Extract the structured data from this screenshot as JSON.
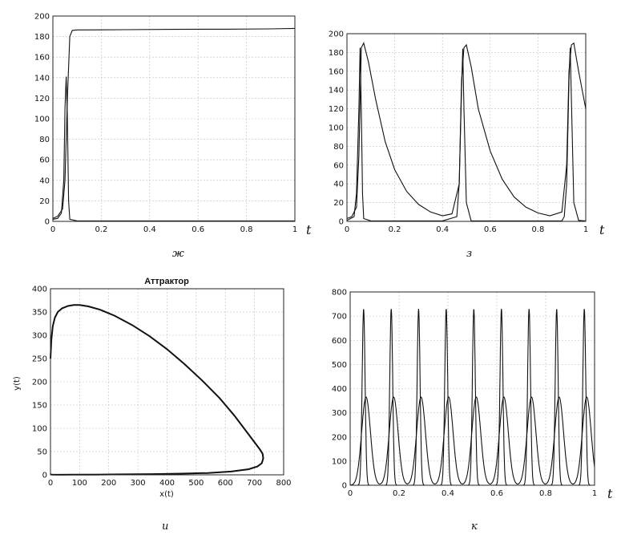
{
  "chart_data": [
    {
      "id": "zh",
      "type": "line",
      "caption": "ж",
      "x_var": "t",
      "xlim": [
        0,
        1
      ],
      "ylim": [
        0,
        200
      ],
      "xticks": [
        0,
        0.2,
        0.4,
        0.6,
        0.8,
        1
      ],
      "xtick_labels": [
        "0",
        "0.2",
        "0.4",
        "0.6",
        "0.8",
        "1"
      ],
      "yticks": [
        0,
        20,
        40,
        60,
        80,
        100,
        120,
        140,
        160,
        180,
        200
      ],
      "yticks_labels": [
        "0",
        "20",
        "40",
        "60",
        "80",
        "100",
        "120",
        "140",
        "160",
        "180",
        "200"
      ],
      "grid": true,
      "series": [
        {
          "x": [
            0,
            0.02,
            0.04,
            0.05,
            0.06,
            0.07,
            0.08,
            0.1,
            0.3,
            0.5,
            0.7,
            0.9,
            1.0
          ],
          "y": [
            3,
            5,
            12,
            40,
            120,
            180,
            186,
            186.5,
            186.7,
            187,
            187.2,
            187.5,
            188
          ]
        },
        {
          "x": [
            0,
            0.02,
            0.035,
            0.045,
            0.05,
            0.055,
            0.06,
            0.065,
            0.07,
            0.1,
            0.5,
            1.0
          ],
          "y": [
            2,
            3,
            8,
            40,
            110,
            141,
            100,
            20,
            2,
            0.5,
            0.5,
            0.5
          ]
        }
      ]
    },
    {
      "id": "z",
      "type": "line",
      "caption": "з",
      "x_var": "t",
      "xlim": [
        0,
        1
      ],
      "ylim": [
        0,
        200
      ],
      "xticks": [
        0,
        0.2,
        0.4,
        0.6,
        0.8,
        1
      ],
      "xtick_labels": [
        "0",
        "0.2",
        "0.4",
        "0.6",
        "0.8",
        "1"
      ],
      "yticks": [
        0,
        20,
        40,
        60,
        80,
        100,
        120,
        140,
        160,
        180,
        200
      ],
      "yticks_labels": [
        "0",
        "20",
        "40",
        "60",
        "80",
        "100",
        "120",
        "140",
        "160",
        "180",
        "200"
      ],
      "grid": true,
      "series": [
        {
          "x": [
            0,
            0.02,
            0.04,
            0.05,
            0.06,
            0.07,
            0.09,
            0.12,
            0.16,
            0.2,
            0.25,
            0.3,
            0.35,
            0.4,
            0.44,
            0.47,
            0.48,
            0.49,
            0.5,
            0.52,
            0.55,
            0.6,
            0.65,
            0.7,
            0.75,
            0.8,
            0.85,
            0.9,
            0.92,
            0.93,
            0.94,
            0.95,
            0.97,
            1.0
          ],
          "y": [
            3,
            5,
            15,
            70,
            185,
            190,
            170,
            130,
            85,
            55,
            32,
            18,
            10,
            6,
            8,
            40,
            150,
            185,
            188,
            165,
            120,
            75,
            45,
            26,
            15,
            9,
            6,
            10,
            60,
            160,
            188,
            190,
            160,
            120
          ]
        },
        {
          "x": [
            0,
            0.03,
            0.04,
            0.05,
            0.055,
            0.06,
            0.065,
            0.07,
            0.1,
            0.4,
            0.46,
            0.47,
            0.48,
            0.485,
            0.49,
            0.5,
            0.52,
            0.9,
            0.91,
            0.92,
            0.93,
            0.935,
            0.94,
            0.95,
            0.97,
            1.0
          ],
          "y": [
            1,
            5,
            30,
            120,
            185,
            120,
            30,
            3,
            0.5,
            0.5,
            5,
            40,
            140,
            184,
            120,
            20,
            0.5,
            0.5,
            5,
            40,
            150,
            185,
            130,
            20,
            1,
            0.5
          ]
        }
      ]
    },
    {
      "id": "i",
      "type": "line",
      "caption": "и",
      "title": "Аттрактор",
      "xlabel": "x(t)",
      "ylabel": "y(t)",
      "xlim": [
        0,
        800
      ],
      "ylim": [
        0,
        400
      ],
      "xticks": [
        0,
        100,
        200,
        300,
        400,
        500,
        600,
        700,
        800
      ],
      "xtick_labels": [
        "0",
        "100",
        "200",
        "300",
        "400",
        "500",
        "600",
        "700",
        "800"
      ],
      "yticks": [
        0,
        50,
        100,
        150,
        200,
        250,
        300,
        350,
        400
      ],
      "yticks_labels": [
        "0",
        "50",
        "100",
        "150",
        "200",
        "250",
        "300",
        "350",
        "400"
      ],
      "grid": true,
      "series": [
        {
          "x": [
            0,
            3,
            8,
            15,
            25,
            40,
            60,
            80,
            100,
            130,
            170,
            220,
            280,
            340,
            400,
            460,
            520,
            580,
            630,
            670,
            700,
            718,
            728,
            730,
            725,
            710,
            680,
            620,
            540,
            450,
            350,
            250,
            150,
            80,
            30,
            5,
            0
          ],
          "y": [
            250,
            290,
            320,
            338,
            350,
            358,
            363,
            365,
            365,
            362,
            355,
            342,
            322,
            298,
            270,
            238,
            203,
            165,
            128,
            95,
            70,
            55,
            45,
            35,
            25,
            18,
            12,
            7,
            4,
            2.5,
            1.5,
            1,
            0.6,
            0.3,
            0.2,
            0.5,
            1
          ]
        }
      ]
    },
    {
      "id": "k",
      "type": "line",
      "caption": "к",
      "x_var": "t",
      "xlim": [
        0,
        1
      ],
      "ylim": [
        0,
        800
      ],
      "xticks": [
        0,
        0.2,
        0.4,
        0.6,
        0.8,
        1
      ],
      "xtick_labels": [
        "0",
        "0.2",
        "0.4",
        "0.6",
        "0.8",
        "1"
      ],
      "yticks": [
        0,
        100,
        200,
        300,
        400,
        500,
        600,
        700,
        800
      ],
      "yticks_labels": [
        "0",
        "100",
        "200",
        "300",
        "400",
        "500",
        "600",
        "700",
        "800"
      ],
      "grid": true,
      "series": [
        {
          "name": "",
          "peaks_x": [
            0.055,
            0.168,
            0.28,
            0.393,
            0.506,
            0.619,
            0.732,
            0.845,
            0.958
          ],
          "peak_y": 730,
          "width": 0.006
        },
        {
          "name": "",
          "peaks_x": [
            0.065,
            0.178,
            0.29,
            0.403,
            0.516,
            0.629,
            0.742,
            0.855,
            0.968
          ],
          "peak_y": 365,
          "width": 0.018
        }
      ]
    }
  ]
}
